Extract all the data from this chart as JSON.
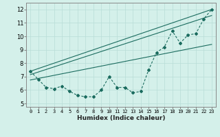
{
  "title": "",
  "xlabel": "Humidex (Indice chaleur)",
  "bg_color": "#d4f0ea",
  "line_color": "#1a6b5e",
  "xlim": [
    -0.5,
    23.5
  ],
  "ylim": [
    4.75,
    12.5
  ],
  "yticks": [
    5,
    6,
    7,
    8,
    9,
    10,
    11,
    12
  ],
  "xticks": [
    0,
    1,
    2,
    3,
    4,
    5,
    6,
    7,
    8,
    9,
    10,
    11,
    12,
    13,
    14,
    15,
    16,
    17,
    18,
    19,
    20,
    21,
    22,
    23
  ],
  "series_dotted": {
    "x": [
      0,
      1,
      2,
      3,
      4,
      5,
      6,
      7,
      8,
      9,
      10,
      11,
      12,
      13,
      14,
      15,
      16,
      17,
      18,
      19,
      20,
      21,
      22,
      23
    ],
    "y": [
      7.4,
      6.8,
      6.2,
      6.1,
      6.3,
      5.9,
      5.6,
      5.5,
      5.5,
      6.0,
      7.0,
      6.2,
      6.2,
      5.8,
      5.9,
      7.5,
      8.8,
      9.2,
      10.4,
      9.5,
      10.1,
      10.2,
      11.3,
      12.0
    ]
  },
  "series_line1": {
    "x": [
      0,
      23
    ],
    "y": [
      7.4,
      12.0
    ]
  },
  "series_line2": {
    "x": [
      0,
      23
    ],
    "y": [
      7.15,
      11.55
    ]
  },
  "series_line3": {
    "x": [
      0,
      23
    ],
    "y": [
      6.75,
      9.4
    ]
  },
  "grid_color": "#b8ddd7",
  "spine_color": "#888888"
}
